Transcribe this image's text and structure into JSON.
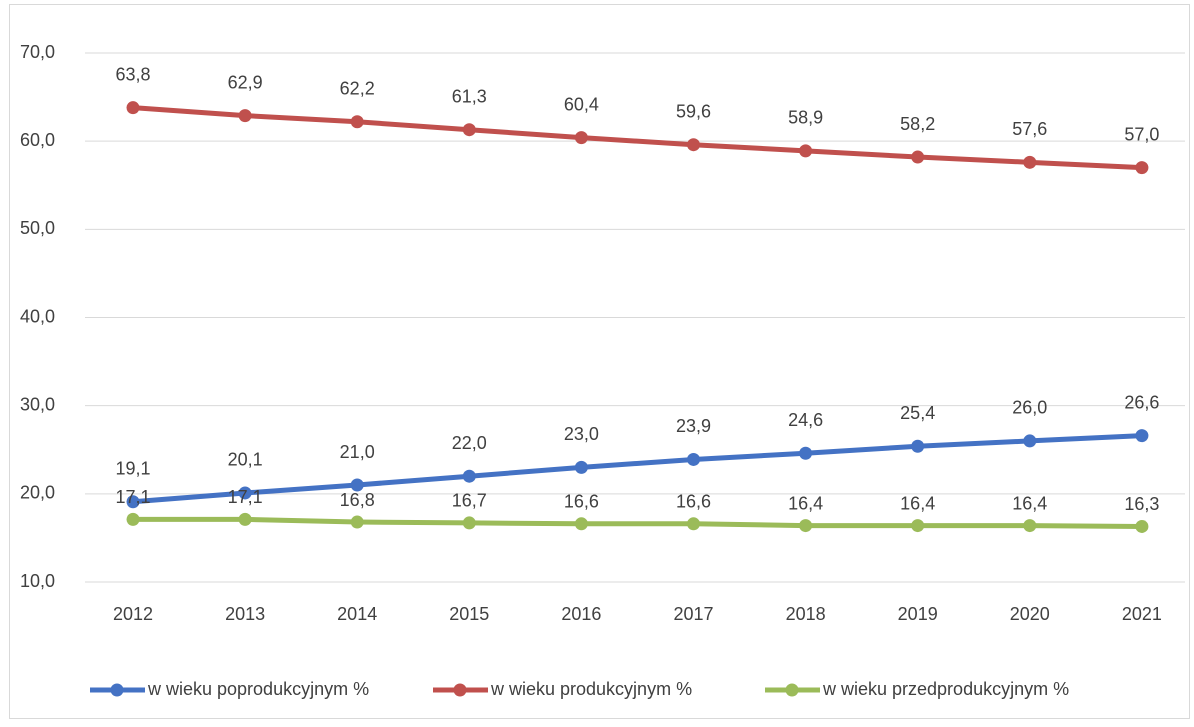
{
  "chart_data": {
    "type": "line",
    "categories": [
      "2012",
      "2013",
      "2014",
      "2015",
      "2016",
      "2017",
      "2018",
      "2019",
      "2020",
      "2021"
    ],
    "series": [
      {
        "name": "w wieku poprodukcyjnym %",
        "color": "#4472c4",
        "values": [
          19.1,
          20.1,
          21.0,
          22.0,
          23.0,
          23.9,
          24.6,
          25.4,
          26.0,
          26.6
        ],
        "value_labels": [
          "19,1",
          "20,1",
          "21,0",
          "22,0",
          "23,0",
          "23,9",
          "24,6",
          "25,4",
          "26,0",
          "26,6"
        ]
      },
      {
        "name": "w wieku produkcyjnym %",
        "color": "#c0504d",
        "values": [
          63.8,
          62.9,
          62.2,
          61.3,
          60.4,
          59.6,
          58.9,
          58.2,
          57.6,
          57.0
        ],
        "value_labels": [
          "63,8",
          "62,9",
          "62,2",
          "61,3",
          "60,4",
          "59,6",
          "58,9",
          "58,2",
          "57,6",
          "57,0"
        ]
      },
      {
        "name": "w wieku przedprodukcyjnym %",
        "color": "#9bbb59",
        "values": [
          17.1,
          17.1,
          16.8,
          16.7,
          16.6,
          16.6,
          16.4,
          16.4,
          16.4,
          16.3
        ],
        "value_labels": [
          "17,1",
          "17,1",
          "16,8",
          "16,7",
          "16,6",
          "16,6",
          "16,4",
          "16,4",
          "16,4",
          "16,3"
        ]
      }
    ],
    "ylim": [
      10,
      70
    ],
    "yticks": [
      {
        "value": 10,
        "label": "10,0"
      },
      {
        "value": 20,
        "label": "20,0"
      },
      {
        "value": 30,
        "label": "30,0"
      },
      {
        "value": 40,
        "label": "40,0"
      },
      {
        "value": 50,
        "label": "50,0"
      },
      {
        "value": 60,
        "label": "60,0"
      },
      {
        "value": 70,
        "label": "70,0"
      }
    ],
    "grid": true,
    "legend": "bottom"
  }
}
